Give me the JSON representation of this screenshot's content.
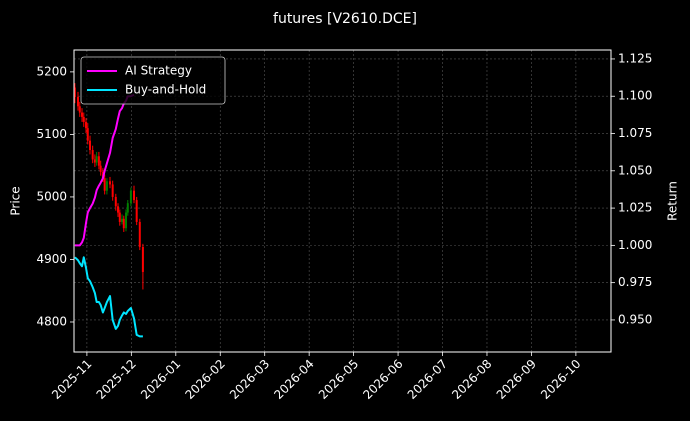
{
  "chart_data": {
    "type": "candlestick",
    "title": "futures [V2610.DCE]",
    "y_label": "Price",
    "y2_label": "Return",
    "x": [
      -0.27,
      -0.2,
      -0.16,
      -0.11,
      -0.07,
      -0.02,
      0.02,
      0.07,
      0.13,
      0.18,
      0.22,
      0.27,
      0.31,
      0.36,
      0.4,
      0.45,
      0.52,
      0.58,
      0.65,
      0.7,
      0.74,
      0.79,
      0.83,
      0.88,
      0.92,
      0.99,
      1.06,
      1.12,
      1.19,
      1.26
    ],
    "open": [
      5175,
      5160,
      5145,
      5135,
      5128,
      5120,
      5110,
      5090,
      5075,
      5060,
      5055,
      5065,
      5050,
      5040,
      5030,
      5010,
      5025,
      5020,
      5000,
      4985,
      4975,
      4960,
      4965,
      4950,
      4975,
      4990,
      5010,
      4995,
      4960,
      4920
    ],
    "high": [
      5182,
      5168,
      5152,
      5142,
      5135,
      5126,
      5118,
      5098,
      5082,
      5068,
      5072,
      5072,
      5058,
      5046,
      5036,
      5030,
      5032,
      5026,
      5005,
      4990,
      4980,
      4972,
      4970,
      4980,
      4995,
      5015,
      5018,
      5000,
      4965,
      4925
    ],
    "low": [
      5150,
      5138,
      5128,
      5120,
      5112,
      5102,
      5084,
      5068,
      5054,
      5048,
      5050,
      5044,
      5034,
      5024,
      5004,
      5004,
      5014,
      4994,
      4978,
      4968,
      4954,
      4956,
      4944,
      4945,
      4970,
      4985,
      4990,
      4955,
      4915,
      4852
    ],
    "close": [
      5160,
      5145,
      5135,
      5128,
      5120,
      5110,
      5090,
      5075,
      5060,
      5055,
      5065,
      5050,
      5040,
      5030,
      5010,
      5025,
      5020,
      5000,
      4985,
      4975,
      4960,
      4965,
      4950,
      4975,
      4990,
      5010,
      4995,
      4960,
      4920,
      4880
    ],
    "up_color": "#008000",
    "down_color": "#ff0000",
    "series": [
      {
        "name": "AI Strategy",
        "color": "#ff00ff",
        "axis": "y2",
        "values": [
          1.0,
          1.0,
          1.0,
          1.002,
          1.005,
          1.015,
          1.022,
          1.025,
          1.028,
          1.032,
          1.037,
          1.04,
          1.042,
          1.045,
          1.05,
          1.055,
          1.062,
          1.072,
          1.078,
          1.085,
          1.09,
          1.092,
          1.095,
          1.097,
          1.1,
          1.1,
          1.101,
          null,
          null,
          null
        ]
      },
      {
        "name": "Buy-and-Hold",
        "color": "#00e5ff",
        "axis": "y2",
        "values": [
          0.992,
          0.99,
          0.988,
          0.986,
          0.992,
          0.985,
          0.978,
          0.976,
          0.972,
          0.968,
          0.962,
          0.962,
          0.96,
          0.955,
          0.958,
          0.962,
          0.966,
          0.95,
          0.944,
          0.946,
          0.95,
          0.953,
          0.955,
          0.954,
          0.956,
          0.958,
          0.951,
          0.94,
          0.939,
          0.939
        ]
      }
    ],
    "xlim": [
      -0.29,
      11.79
    ],
    "xticks": [
      {
        "value": 0,
        "label": "2025-11"
      },
      {
        "value": 1,
        "label": "2025-12"
      },
      {
        "value": 2,
        "label": "2026-01"
      },
      {
        "value": 3,
        "label": "2026-02"
      },
      {
        "value": 4,
        "label": "2026-03"
      },
      {
        "value": 5,
        "label": "2026-04"
      },
      {
        "value": 6,
        "label": "2026-05"
      },
      {
        "value": 7,
        "label": "2026-06"
      },
      {
        "value": 8,
        "label": "2026-07"
      },
      {
        "value": 9,
        "label": "2026-08"
      },
      {
        "value": 10,
        "label": "2026-09"
      },
      {
        "value": 11,
        "label": "2026-10"
      }
    ],
    "ylim": [
      4752,
      5235
    ],
    "yticks": [
      4800,
      4900,
      5000,
      5100,
      5200
    ],
    "y2lim": [
      0.9285,
      1.131
    ],
    "y2ticks": [
      {
        "value": 0.95,
        "label": "0.950"
      },
      {
        "value": 0.975,
        "label": "0.975"
      },
      {
        "value": 1.0,
        "label": "1.000"
      },
      {
        "value": 1.025,
        "label": "1.025"
      },
      {
        "value": 1.05,
        "label": "1.050"
      },
      {
        "value": 1.075,
        "label": "1.075"
      },
      {
        "value": 1.1,
        "label": "1.100"
      },
      {
        "value": 1.125,
        "label": "1.125"
      }
    ],
    "grid": true,
    "legend": "upper left"
  }
}
